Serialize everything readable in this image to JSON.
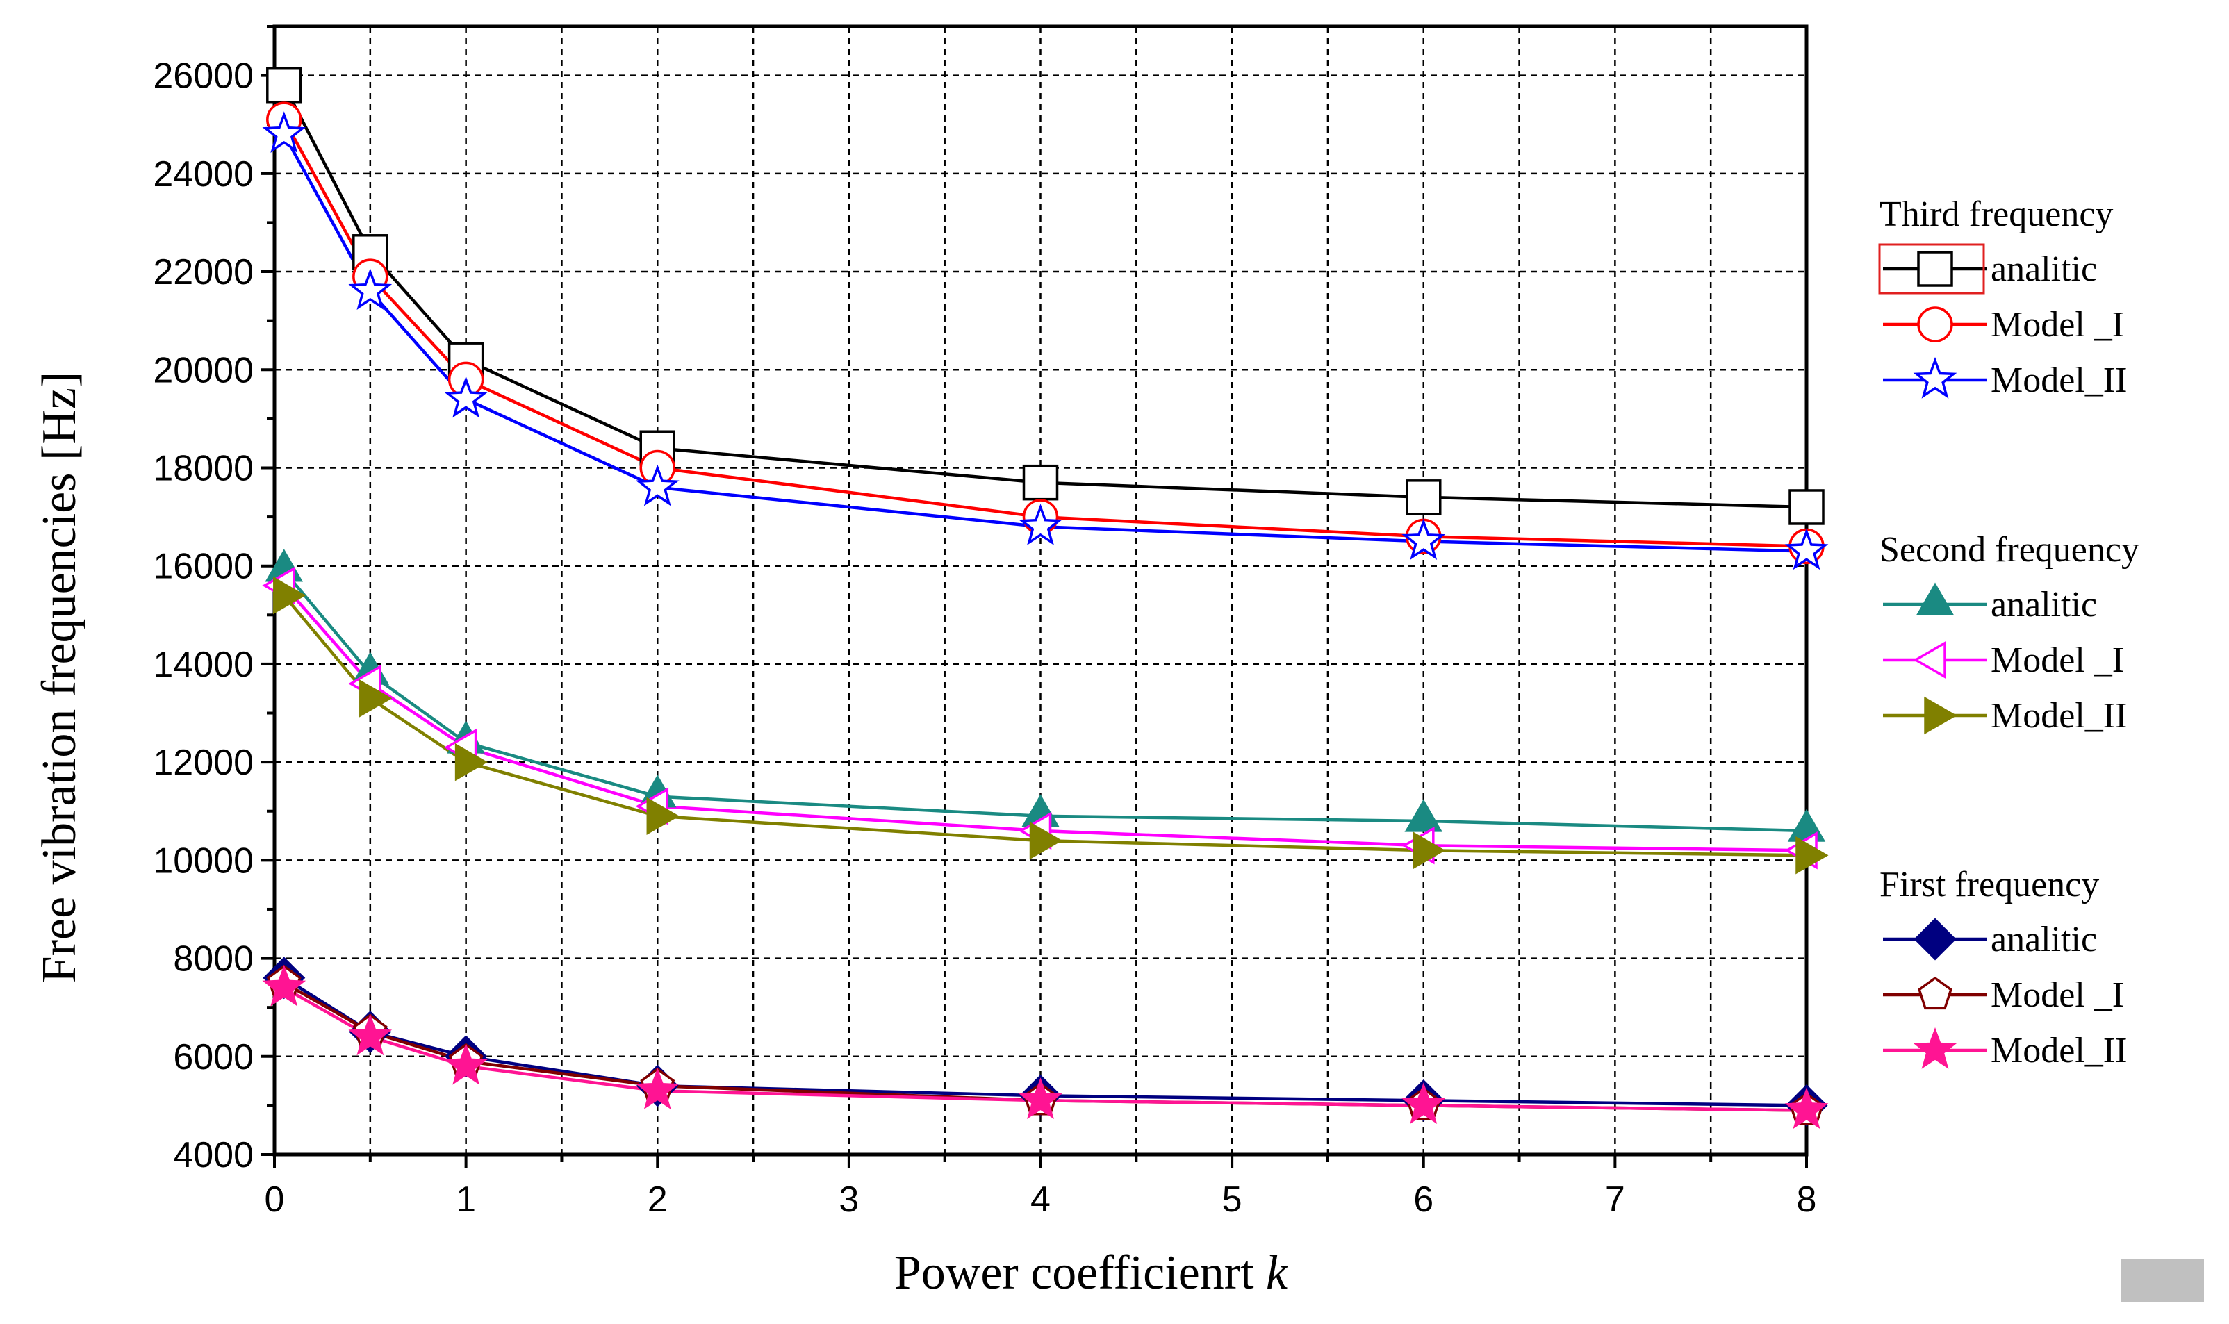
{
  "chart_data": {
    "type": "line",
    "xlabel": "Power coefficienrt",
    "xlabel_var": "k",
    "ylabel": "Free vibration frequencies [Hz]",
    "xlim": [
      0,
      8
    ],
    "ylim": [
      4000,
      27000
    ],
    "xticks": [
      0,
      1,
      2,
      3,
      4,
      5,
      6,
      7,
      8
    ],
    "yticks": [
      4000,
      6000,
      8000,
      10000,
      12000,
      14000,
      16000,
      18000,
      20000,
      22000,
      24000,
      26000
    ],
    "grid": true,
    "legend_position": "right",
    "x": [
      0.05,
      0.5,
      1,
      2,
      4,
      6,
      8
    ],
    "groups": [
      {
        "title": "Third frequency",
        "series": [
          {
            "name": "analitic",
            "marker": "open-square",
            "color": "#000000",
            "values": [
              25800,
              22400,
              20200,
              18400,
              17700,
              17400,
              17200
            ]
          },
          {
            "name": "Model _I",
            "marker": "open-circle",
            "color": "#ff0000",
            "values": [
              25100,
              21900,
              19800,
              18000,
              17000,
              16600,
              16400
            ]
          },
          {
            "name": "Model_II",
            "marker": "open-star",
            "color": "#0000ff",
            "values": [
              24800,
              21600,
              19400,
              17600,
              16800,
              16500,
              16300
            ]
          }
        ]
      },
      {
        "title": "Second frequency",
        "series": [
          {
            "name": "analitic",
            "marker": "filled-triangle-up",
            "color": "#1a8a82",
            "values": [
              15900,
              13800,
              12400,
              11300,
              10900,
              10800,
              10600
            ]
          },
          {
            "name": "Model _I",
            "marker": "open-triangle-left",
            "color": "#ff00ff",
            "values": [
              15600,
              13600,
              12300,
              11100,
              10600,
              10300,
              10200
            ]
          },
          {
            "name": "Model_II",
            "marker": "filled-triangle-right",
            "color": "#808000",
            "values": [
              15400,
              13300,
              12000,
              10900,
              10400,
              10200,
              10100
            ]
          }
        ]
      },
      {
        "title": "First frequency",
        "series": [
          {
            "name": "analitic",
            "marker": "filled-diamond",
            "color": "#000080",
            "values": [
              7600,
              6500,
              6000,
              5400,
              5200,
              5100,
              5000
            ]
          },
          {
            "name": "Model _I",
            "marker": "open-pentagon",
            "color": "#800000",
            "values": [
              7500,
              6500,
              5900,
              5400,
              5100,
              5000,
              4900
            ]
          },
          {
            "name": "Model_II",
            "marker": "filled-star",
            "color": "#ff1493",
            "values": [
              7400,
              6400,
              5800,
              5300,
              5100,
              5000,
              4900
            ]
          }
        ]
      }
    ]
  }
}
